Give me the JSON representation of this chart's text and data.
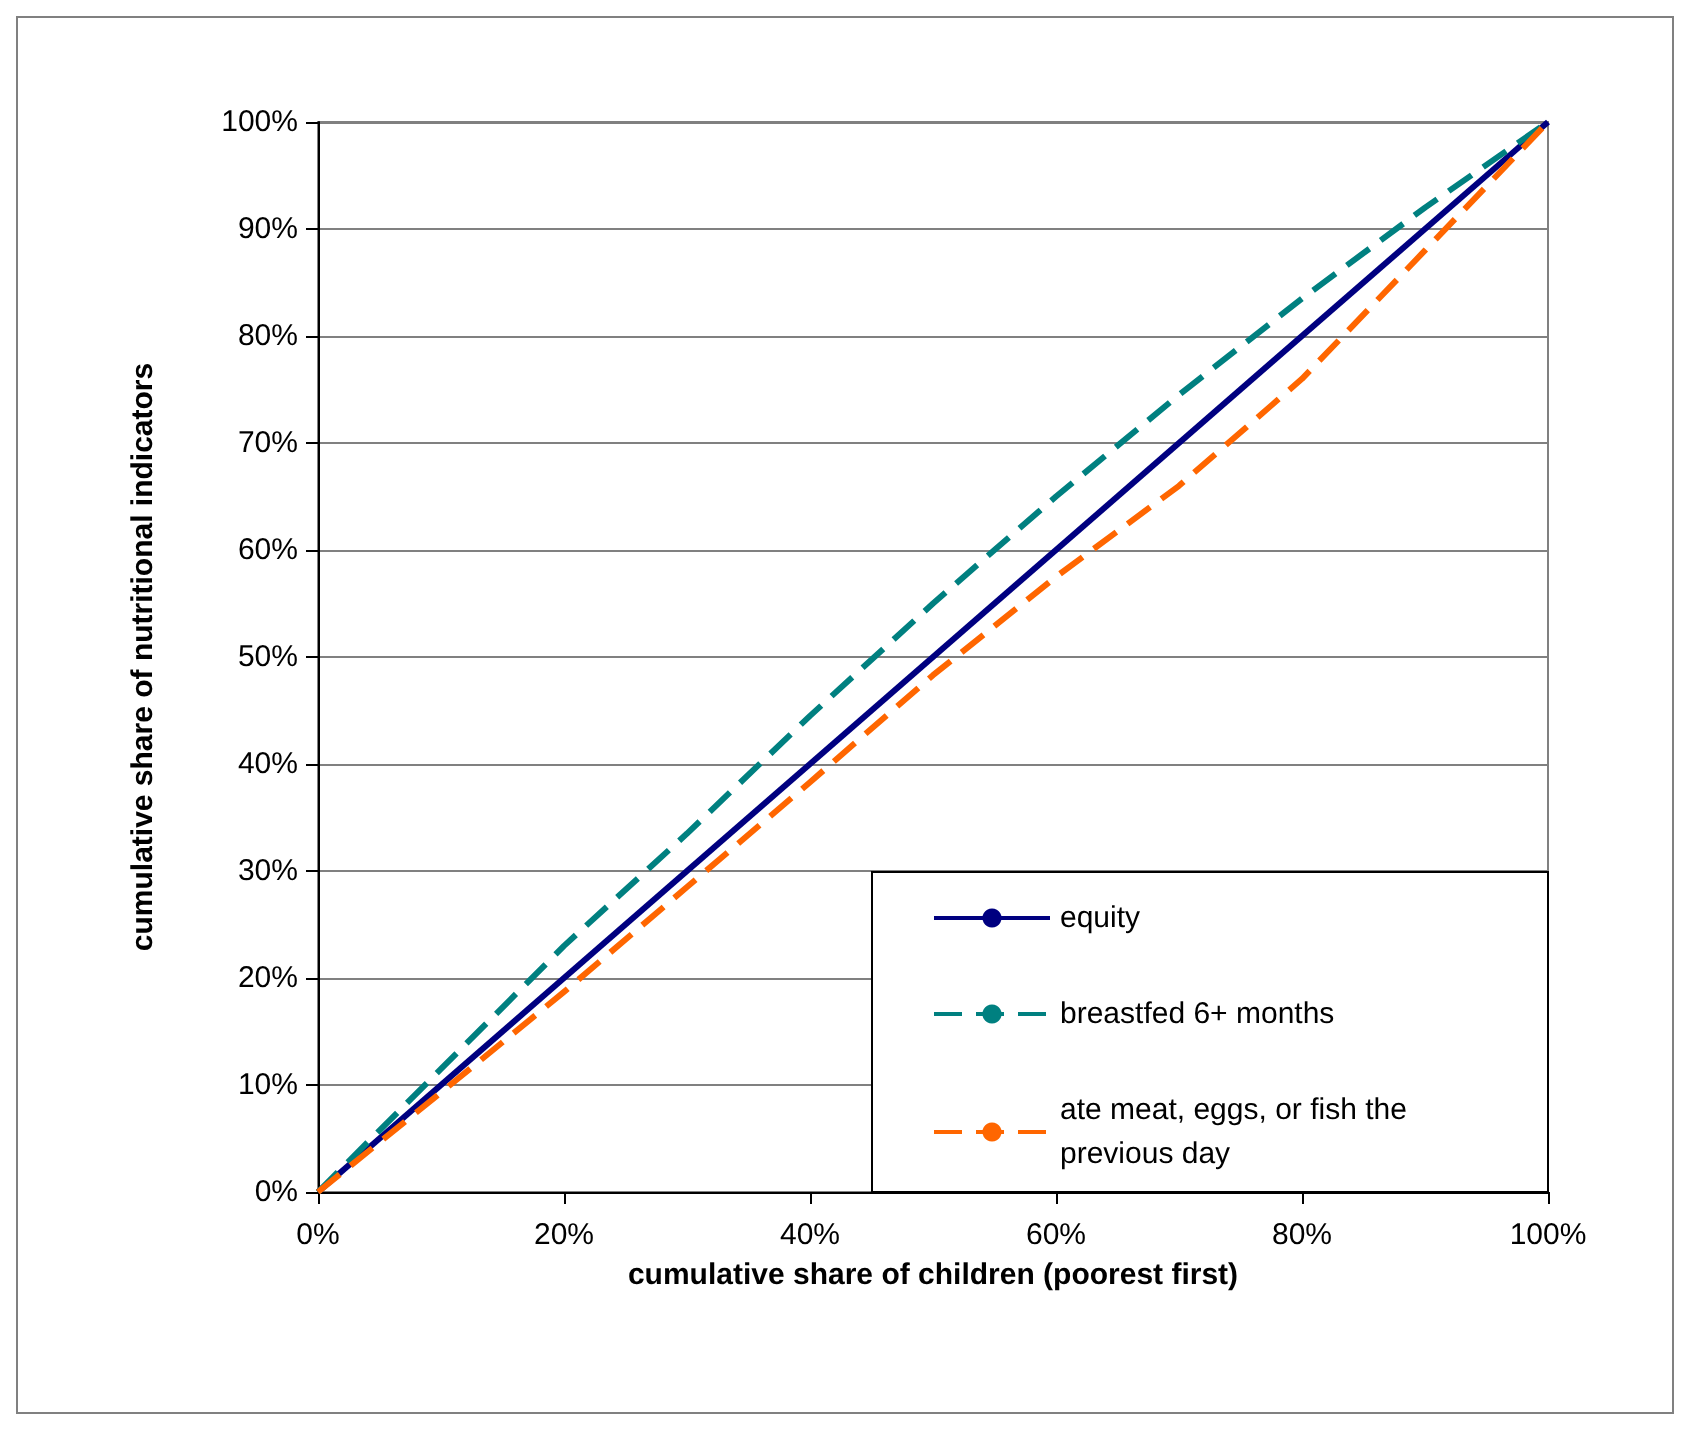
{
  "chart_data": {
    "type": "line",
    "xlabel": "cumulative share of children (poorest first)",
    "ylabel": "cumulative share of nutritional indicators",
    "x": [
      0,
      10,
      20,
      30,
      40,
      50,
      60,
      70,
      80,
      90,
      100
    ],
    "series": [
      {
        "name": "equity",
        "color": "#000080",
        "line_style": "solid",
        "x": [
          0,
          100
        ],
        "values": [
          0,
          100
        ]
      },
      {
        "name": "breastfed 6+ months",
        "color": "#008080",
        "line_style": "dashed",
        "values": [
          0,
          11.5,
          23,
          33.5,
          44.5,
          55,
          65,
          74.5,
          83.5,
          92,
          100
        ]
      },
      {
        "name": "ate meat, eggs, or fish the previous day",
        "color": "#ff6600",
        "line_style": "dashed",
        "values": [
          0,
          9.3,
          18.7,
          28.5,
          38.3,
          48.3,
          57.5,
          66,
          76,
          88,
          100
        ]
      }
    ],
    "xlim": [
      0,
      100
    ],
    "xticks": [
      {
        "value": 0,
        "label": "0%"
      },
      {
        "value": 20,
        "label": "20%"
      },
      {
        "value": 40,
        "label": "40%"
      },
      {
        "value": 60,
        "label": "60%"
      },
      {
        "value": 80,
        "label": "80%"
      },
      {
        "value": 100,
        "label": "100%"
      }
    ],
    "ylim": [
      0,
      100
    ],
    "yticks": [
      {
        "value": 0,
        "label": "0%"
      },
      {
        "value": 10,
        "label": "10%"
      },
      {
        "value": 20,
        "label": "20%"
      },
      {
        "value": 30,
        "label": "30%"
      },
      {
        "value": 40,
        "label": "40%"
      },
      {
        "value": 50,
        "label": "50%"
      },
      {
        "value": 60,
        "label": "60%"
      },
      {
        "value": 70,
        "label": "70%"
      },
      {
        "value": 80,
        "label": "80%"
      },
      {
        "value": 90,
        "label": "90%"
      },
      {
        "value": 100,
        "label": "100%"
      }
    ],
    "grid": "y",
    "legend": "bottom right",
    "marker": "none"
  }
}
